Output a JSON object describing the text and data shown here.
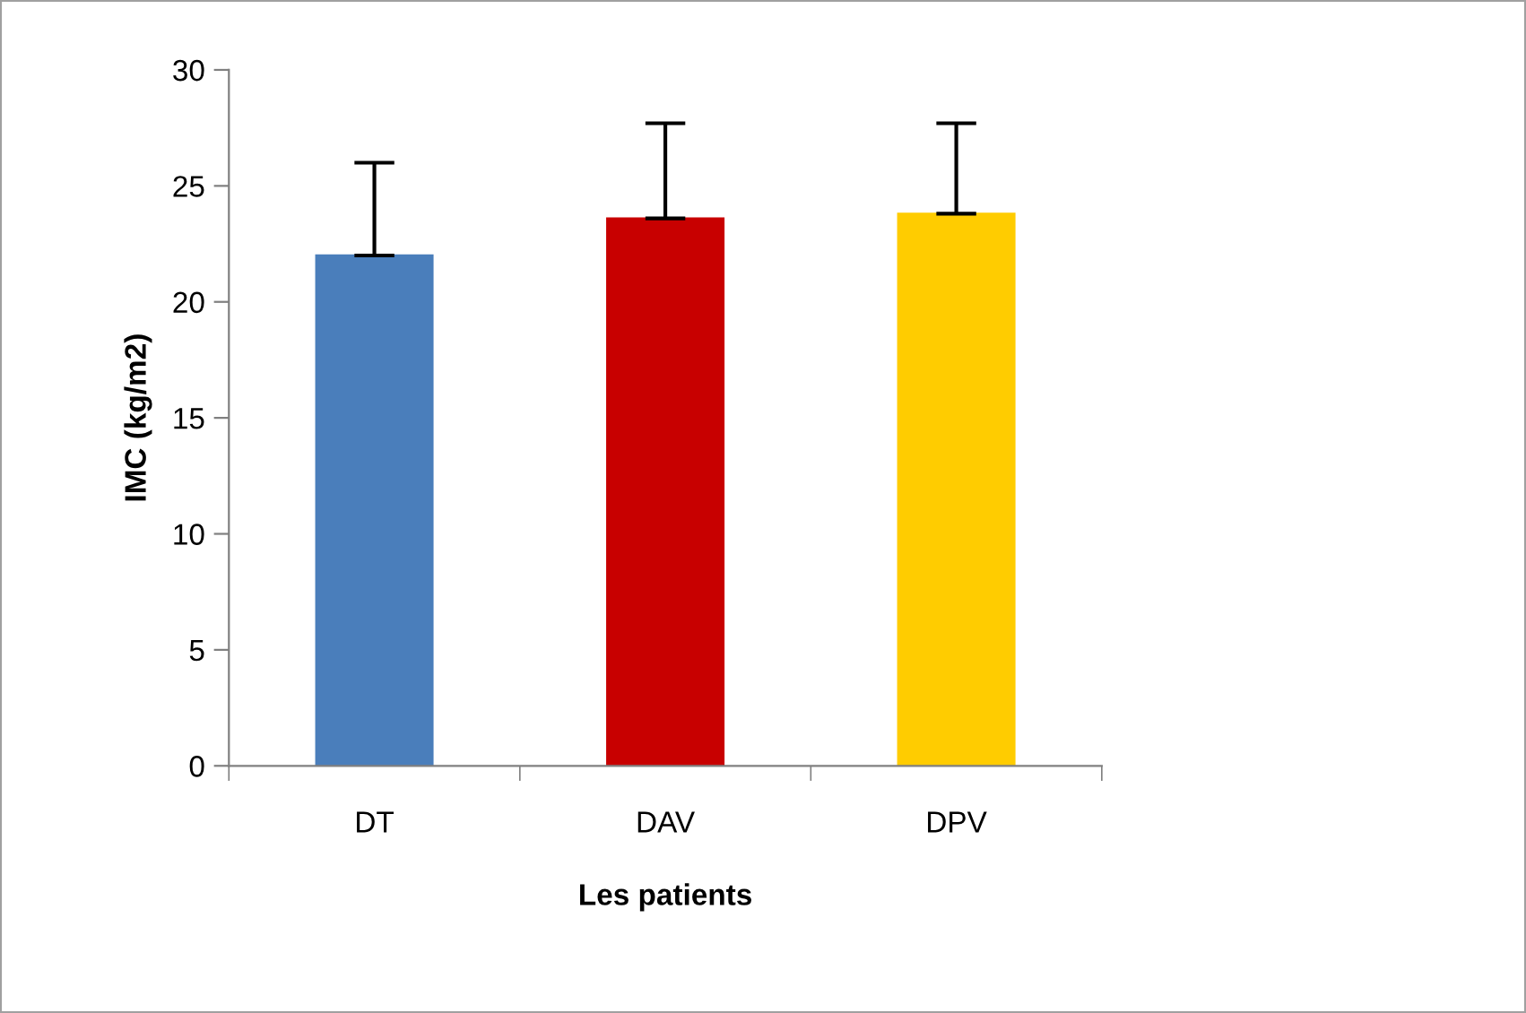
{
  "chart_data": {
    "type": "bar",
    "xlabel": "Les patients",
    "ylabel": "IMC (kg/m2)",
    "categories": [
      "DT",
      "DAV",
      "DPV"
    ],
    "values": [
      22.0,
      23.6,
      23.8
    ],
    "colors": [
      "#4a7ebb",
      "#c80000",
      "#ffcc00"
    ],
    "errors": [
      [
        22.0,
        26.0
      ],
      [
        23.6,
        27.7
      ],
      [
        23.8,
        27.7
      ]
    ],
    "ylim": [
      0,
      30
    ],
    "yticks": [
      0,
      5,
      10,
      15,
      20,
      25,
      30
    ],
    "grid": false
  }
}
